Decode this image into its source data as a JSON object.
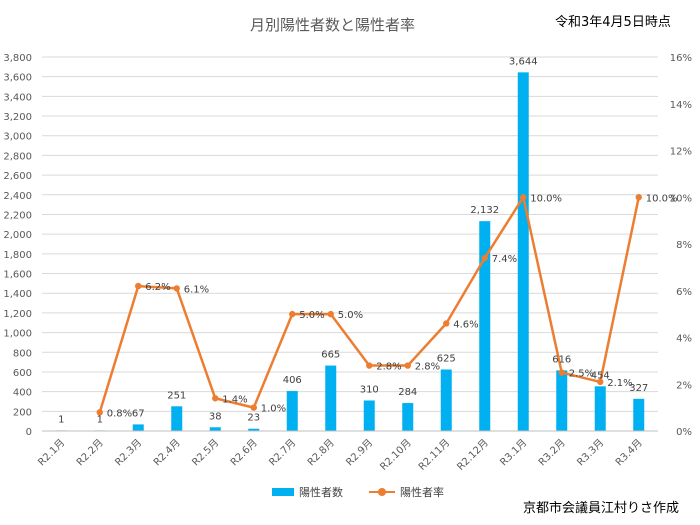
{
  "date_note": "令和3年4月5日時点",
  "author": "京都市会議員江村りさ作成",
  "colors": {
    "bar": "#00b0f0",
    "line": "#ed7d31",
    "axis_text": "#595959",
    "grid": "#d9d9d9"
  },
  "chart_data": {
    "type": "bar",
    "title": "月別陽性者数と陽性者率",
    "categories": [
      "R2.1月",
      "R2.2月",
      "R2.3月",
      "R2.4月",
      "R2.5月",
      "R2.6月",
      "R2.7月",
      "R2.8月",
      "R2.9月",
      "R2.10月",
      "R2.11月",
      "R2.12月",
      "R3.1月",
      "R3.2月",
      "R3.3月",
      "R3.4月"
    ],
    "series": [
      {
        "name": "陽性者数",
        "type": "bar",
        "axis": "left",
        "values": [
          1,
          1,
          67,
          251,
          38,
          23,
          406,
          665,
          310,
          284,
          625,
          2132,
          3644,
          616,
          454,
          327
        ],
        "labels": [
          "1",
          "1",
          "67",
          "251",
          "38",
          "23",
          "406",
          "665",
          "310",
          "284",
          "625",
          "2,132",
          "3,644",
          "616",
          "454",
          "327"
        ]
      },
      {
        "name": "陽性者率",
        "type": "line",
        "axis": "right",
        "values": [
          null,
          0.8,
          6.2,
          6.1,
          1.4,
          1.0,
          5.0,
          5.0,
          2.8,
          2.8,
          4.6,
          7.4,
          10.0,
          2.5,
          2.1,
          10.0
        ],
        "labels": [
          "",
          "0.8%",
          "6.2%",
          "6.1%",
          "1.4%",
          "1.0%",
          "5.0%",
          "5.0%",
          "2.8%",
          "2.8%",
          "4.6%",
          "7.4%",
          "10.0%",
          "2.5%",
          "2.1%",
          "10.0%"
        ]
      }
    ],
    "y_left": {
      "lim": [
        0,
        3800
      ],
      "ticks": [
        "0",
        "200",
        "400",
        "600",
        "800",
        "1,000",
        "1,200",
        "1,400",
        "1,600",
        "1,800",
        "2,000",
        "2,200",
        "2,400",
        "2,600",
        "2,800",
        "3,000",
        "3,200",
        "3,400",
        "3,600",
        "3,800"
      ]
    },
    "y_right": {
      "lim": [
        0,
        16
      ],
      "ticks": [
        "0%",
        "2%",
        "4%",
        "6%",
        "8%",
        "10%",
        "12%",
        "14%",
        "16%"
      ]
    },
    "grid": true,
    "legend": "bottom"
  }
}
